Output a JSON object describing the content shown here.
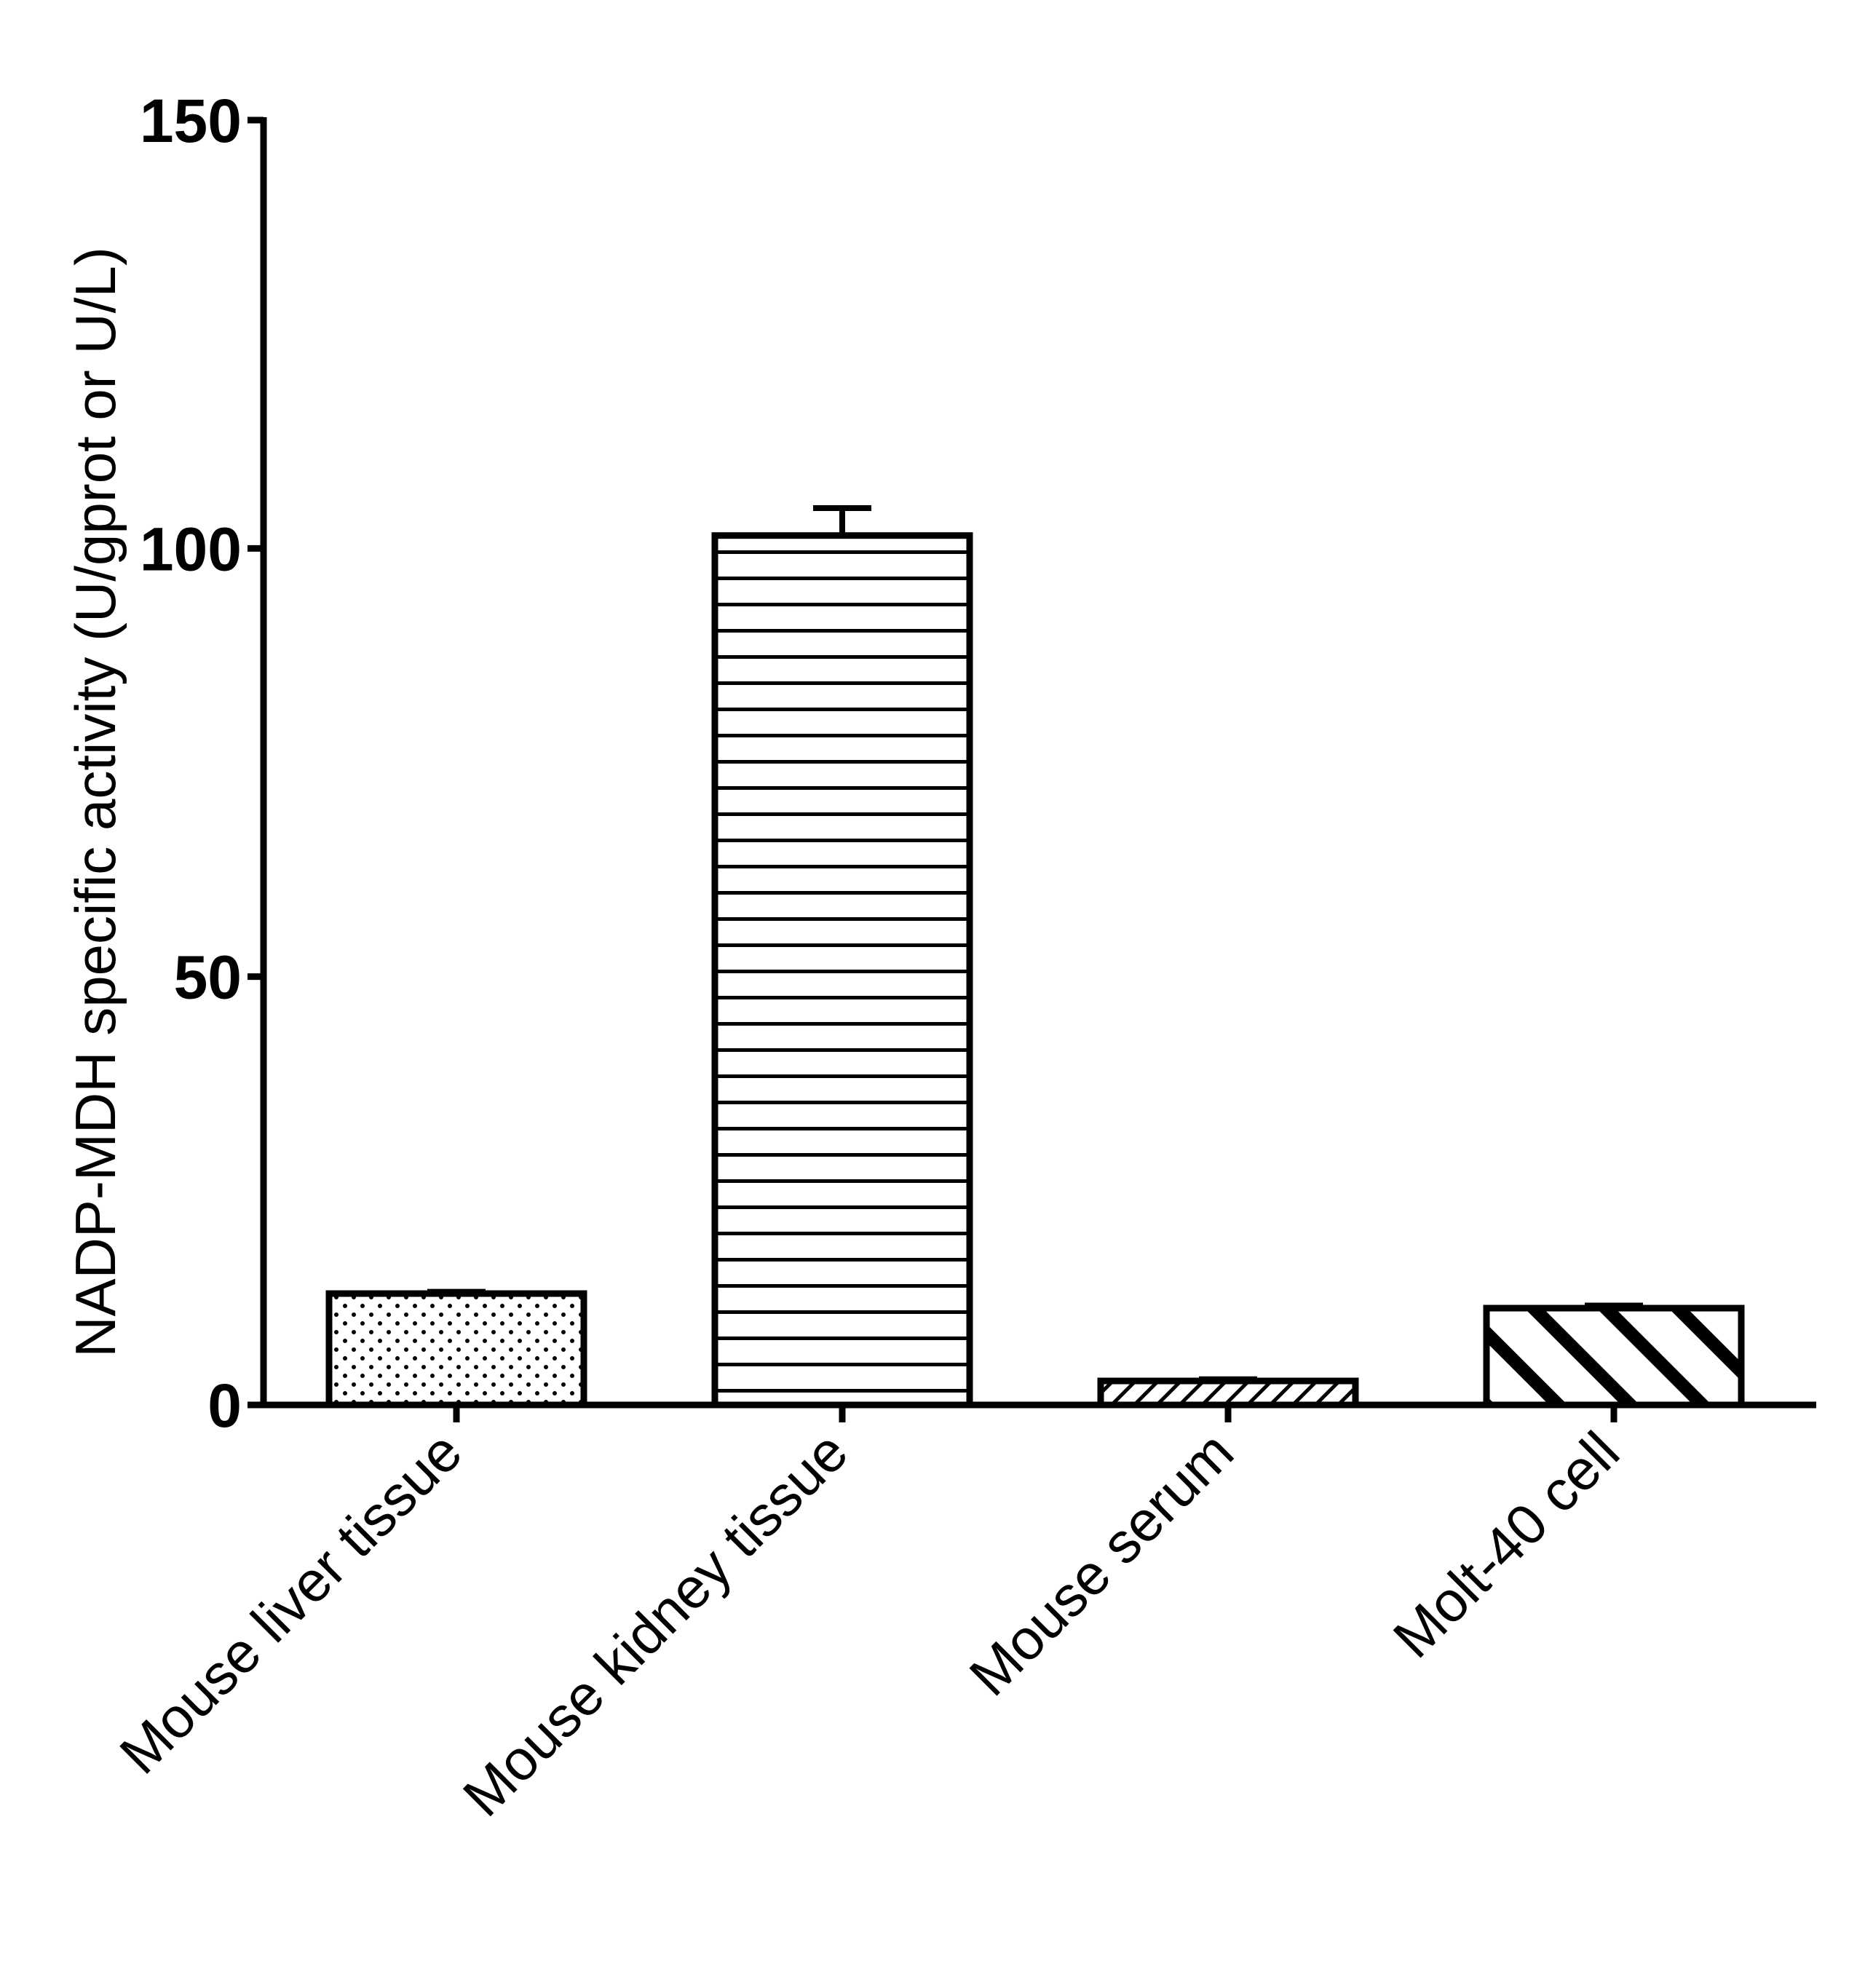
{
  "chart_data": {
    "type": "bar",
    "title": "",
    "xlabel": "",
    "ylabel": "NADP-MDH specific activity (U/gprot or U/L)",
    "ylim": [
      0,
      150
    ],
    "yticks": [
      0,
      50,
      100,
      150
    ],
    "categories": [
      "Mouse liver tissue",
      "Mouse kidney tissue",
      "Mouse serum",
      "Molt-40 cell"
    ],
    "series": [
      {
        "values": [
          13,
          101.5,
          2.8,
          11.3
        ],
        "errors": [
          0.2,
          3.2,
          0.2,
          0.3
        ],
        "patterns": [
          "dots",
          "horizontal-lines",
          "fine-diagonal",
          "thick-diagonal"
        ]
      }
    ],
    "grid": false,
    "legend": "none",
    "colors": {
      "stroke": "#000000",
      "fill": "#ffffff"
    }
  }
}
